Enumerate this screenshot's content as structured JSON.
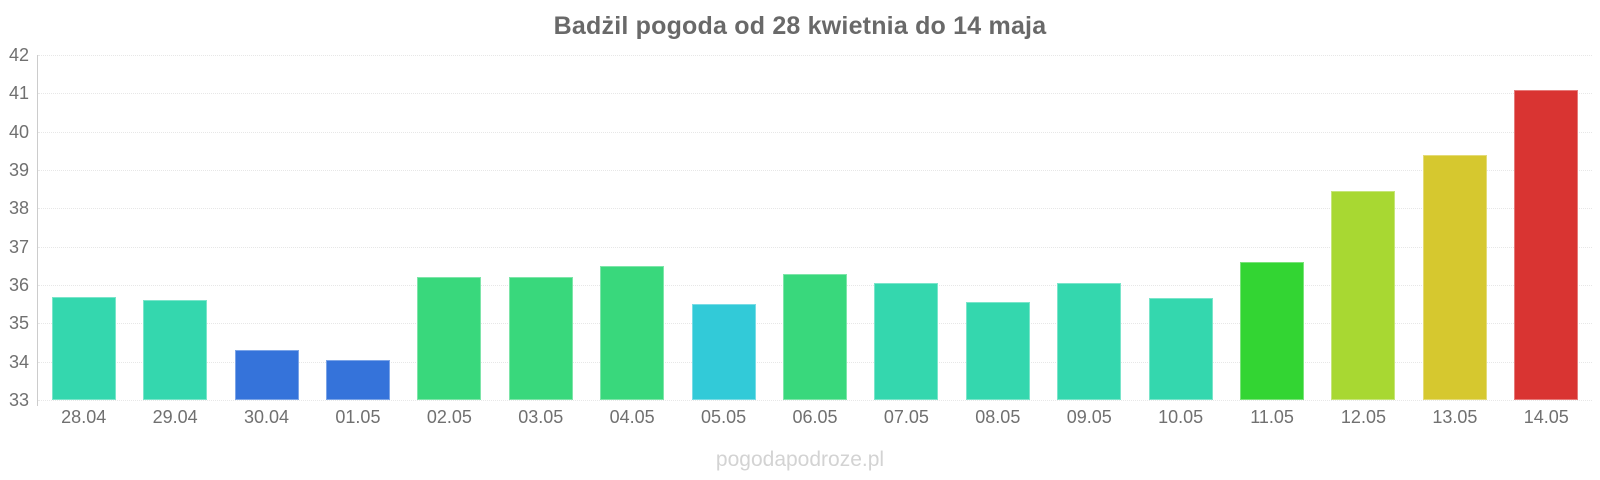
{
  "chart_data": {
    "type": "bar",
    "title": "Badżil pogoda od 28 kwietnia do 14 maja",
    "categories": [
      "28.04",
      "29.04",
      "30.04",
      "01.05",
      "02.05",
      "03.05",
      "04.05",
      "05.05",
      "06.05",
      "07.05",
      "08.05",
      "09.05",
      "10.05",
      "11.05",
      "12.05",
      "13.05",
      "14.05"
    ],
    "values": [
      35.7,
      35.6,
      34.3,
      34.05,
      36.2,
      36.2,
      36.5,
      35.5,
      36.3,
      36.05,
      35.55,
      36.05,
      35.65,
      36.6,
      38.45,
      39.4,
      41.1
    ],
    "bar_colors": [
      "#34d7ae",
      "#34d7ae",
      "#3573da",
      "#3573da",
      "#39d87c",
      "#39d87c",
      "#39d87c",
      "#32cad8",
      "#39d87c",
      "#34d7ae",
      "#34d7ae",
      "#34d7ae",
      "#34d7ae",
      "#33d533",
      "#a8d832",
      "#d6c82f",
      "#d93432"
    ],
    "xlabel": "",
    "ylabel": "",
    "ylim": [
      33,
      42
    ],
    "y_ticks": [
      33,
      34,
      35,
      36,
      37,
      38,
      39,
      40,
      41,
      42
    ],
    "grid": "horizontal-dotted",
    "legend": "none"
  },
  "footer": {
    "watermark": "pogodapodroze.pl"
  },
  "colors": {
    "background": "#ffffff",
    "title_text": "#696969",
    "axis_label_text": "#707070",
    "axis_line": "#cccccc",
    "gridline": "#e7e7e7",
    "watermark_text": "#d3d3d3"
  }
}
